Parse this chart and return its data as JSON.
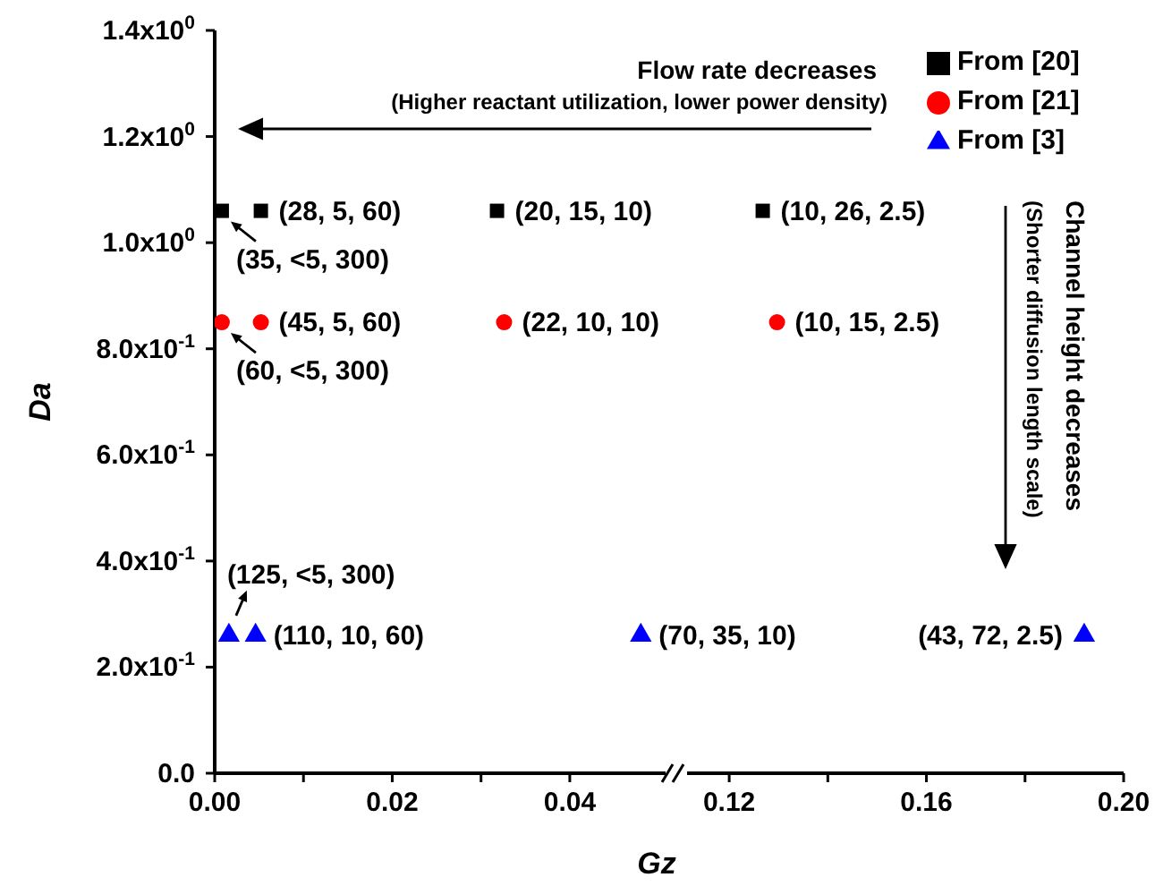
{
  "chart_data": [
    {
      "type": "scatter",
      "ylabel": "Da",
      "xlabel": "Gz",
      "xlim": [
        0,
        0.052
      ],
      "xticks": [
        {
          "value": 0,
          "label": "0.00"
        },
        {
          "value": 0.01,
          "label": null
        },
        {
          "value": 0.02,
          "label": "0.02"
        },
        {
          "value": 0.03,
          "label": null
        },
        {
          "value": 0.04,
          "label": "0.04"
        }
      ],
      "ylim": [
        0,
        1.4
      ],
      "yticks": [
        {
          "value": 0,
          "label": "0.0"
        },
        {
          "value": 0.2,
          "label": "2.0x10$^{-1}$"
        },
        {
          "value": 0.4,
          "label": "4.0x10$^{-1}$"
        },
        {
          "value": 0.6,
          "label": "6.0x10$^{-1}$"
        },
        {
          "value": 0.8,
          "label": "8.0x10$^{-1}$"
        },
        {
          "value": 1.0,
          "label": "1.0x10$^{0}$"
        },
        {
          "value": 1.2,
          "label": "1.2x10$^{0}$"
        },
        {
          "value": 1.4,
          "label": "1.4x10$^{0}$"
        }
      ],
      "series": [
        {
          "color": "#000000",
          "marker": "square",
          "x": [
            0.0008,
            0.0052,
            0.0318
          ],
          "values": [
            1.06,
            1.06,
            1.06
          ]
        },
        {
          "color": "#ff0000",
          "marker": "circle",
          "x": [
            0.0008,
            0.0052,
            0.0326
          ],
          "values": [
            0.85,
            0.85,
            0.85
          ]
        },
        {
          "color": "#0000ff",
          "marker": "triangle",
          "x": [
            0.0016,
            0.0046,
            0.048
          ],
          "values": [
            0.26,
            0.26,
            0.26
          ]
        }
      ],
      "annotations": [
        {
          "text": "(35, <5, 300)",
          "x": 0.0008,
          "y": 1.06
        },
        {
          "text": "(28, 5, 60)",
          "x": 0.0052,
          "y": 1.06
        },
        {
          "text": "(20, 15, 10)",
          "x": 0.0318,
          "y": 1.06
        },
        {
          "text": "(60, <5, 300)",
          "x": 0.0008,
          "y": 0.85
        },
        {
          "text": "(45, 5, 60)",
          "x": 0.0052,
          "y": 0.85
        },
        {
          "text": "(22, 10, 10)",
          "x": 0.0326,
          "y": 0.85
        },
        {
          "text": "(125, <5, 300)",
          "x": 0.0016,
          "y": 0.26
        },
        {
          "text": "(110, 10, 60)",
          "x": 0.0046,
          "y": 0.26
        },
        {
          "text": "(70, 35, 10)",
          "x": 0.048,
          "y": 0.26
        }
      ]
    },
    {
      "type": "scatter",
      "tick_labels": "x",
      "legend": "top right",
      "xlim": [
        0.11,
        0.2
      ],
      "xticks": [
        {
          "value": 0.12,
          "label": "0.12"
        },
        {
          "value": 0.14,
          "label": null
        },
        {
          "value": 0.16,
          "label": "0.16"
        },
        {
          "value": 0.18,
          "label": null
        },
        {
          "value": 0.2,
          "label": "0.20"
        }
      ],
      "ylim": [
        0,
        1.4
      ],
      "series": [
        {
          "name": "From [20]",
          "color": "#000000",
          "marker": "square",
          "x": [
            0.1268
          ],
          "values": [
            1.06
          ]
        },
        {
          "name": "From [21]",
          "color": "#ff0000",
          "marker": "circle",
          "x": [
            0.1297
          ],
          "values": [
            0.85
          ]
        },
        {
          "name": "From [3]",
          "color": "#0000ff",
          "marker": "triangle",
          "x": [
            0.192
          ],
          "values": [
            0.26
          ]
        }
      ],
      "annotations": [
        {
          "text": "(10, 26, 2.5)",
          "x": 0.1268,
          "y": 1.06
        },
        {
          "text": "(10, 15, 2.5)",
          "x": 0.1297,
          "y": 0.85
        },
        {
          "text": "(43, 72, 2.5)",
          "x": 0.192,
          "y": 0.26
        },
        "Flow rate decreases",
        "(Higher reactant utilization, lower power density)",
        "Channel height decreases",
        "(Shorter diffusion length scale)"
      ]
    }
  ]
}
